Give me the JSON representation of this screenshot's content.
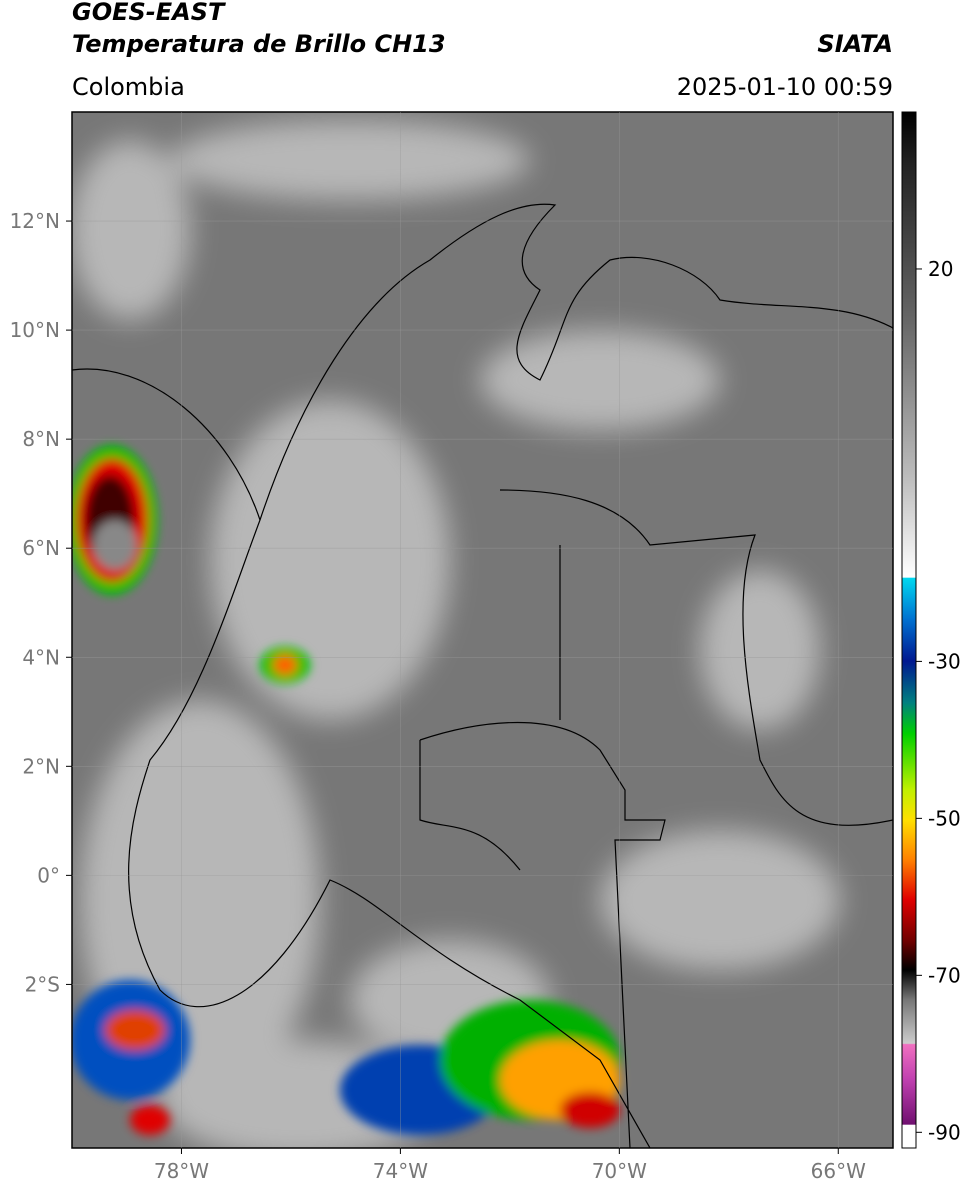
{
  "header": {
    "title": "GOES-EAST",
    "subtitle": "Temperatura de Brillo CH13",
    "source": "SIATA",
    "region": "Colombia",
    "datetime": "2025-01-10 00:59"
  },
  "map": {
    "xlim": [
      -80,
      -65
    ],
    "ylim": [
      -5,
      14
    ],
    "xticks": [
      {
        "value": -78,
        "label": "78°W"
      },
      {
        "value": -74,
        "label": "74°W"
      },
      {
        "value": -70,
        "label": "70°W"
      },
      {
        "value": -66,
        "label": "66°W"
      }
    ],
    "yticks": [
      {
        "value": 12,
        "label": "12°N"
      },
      {
        "value": 10,
        "label": "10°N"
      },
      {
        "value": 8,
        "label": "8°N"
      },
      {
        "value": 6,
        "label": "6°N"
      },
      {
        "value": 4,
        "label": "4°N"
      },
      {
        "value": 2,
        "label": "2°N"
      },
      {
        "value": 0,
        "label": "0°"
      },
      {
        "value": -2,
        "label": "2°S"
      }
    ]
  },
  "colorbar": {
    "lim": [
      -92,
      40
    ],
    "ticks": [
      20,
      -30,
      -50,
      -70,
      -90
    ]
  }
}
